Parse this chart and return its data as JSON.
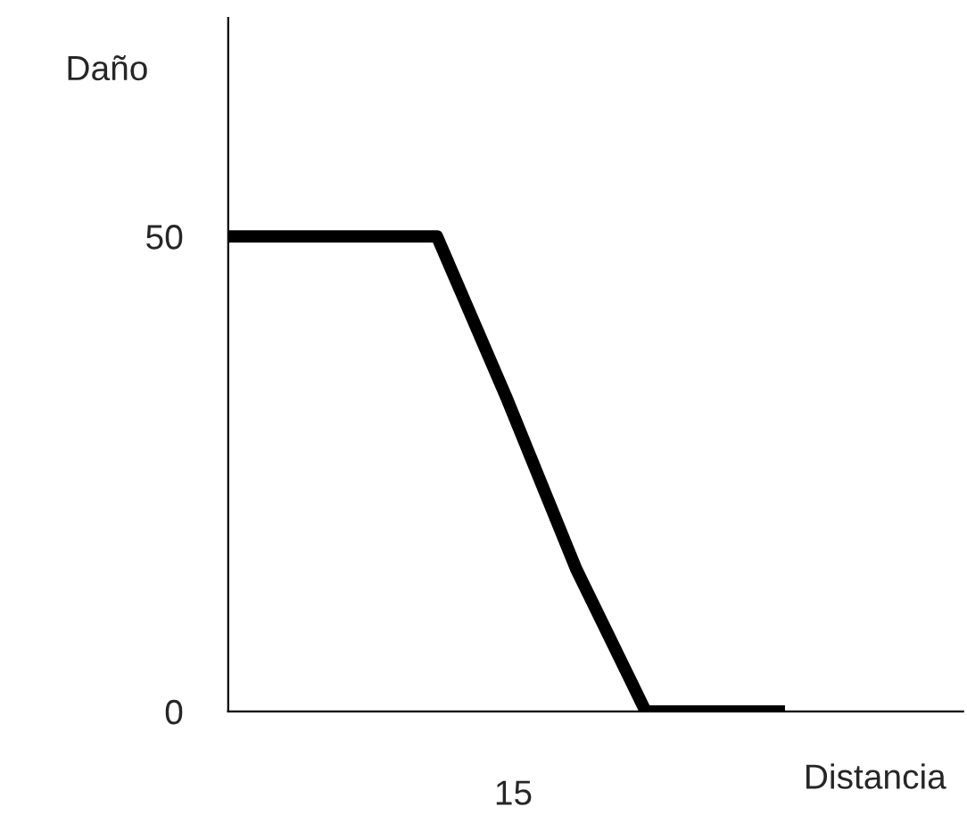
{
  "chart_data": {
    "type": "line",
    "xlabel": "Distancia",
    "ylabel": "Daño",
    "annotations": [
      "15"
    ],
    "categories": [
      null,
      null,
      null,
      null,
      null,
      null,
      null,
      null,
      null
    ],
    "series": [
      {
        "color": "#000000",
        "values": [
          50,
          50,
          50,
          50,
          33,
          15,
          0,
          0,
          0
        ]
      }
    ],
    "ylim": [
      0,
      73
    ],
    "yticks": [
      0,
      50
    ],
    "grid": false,
    "marker": "none",
    "line_style": "solid"
  }
}
